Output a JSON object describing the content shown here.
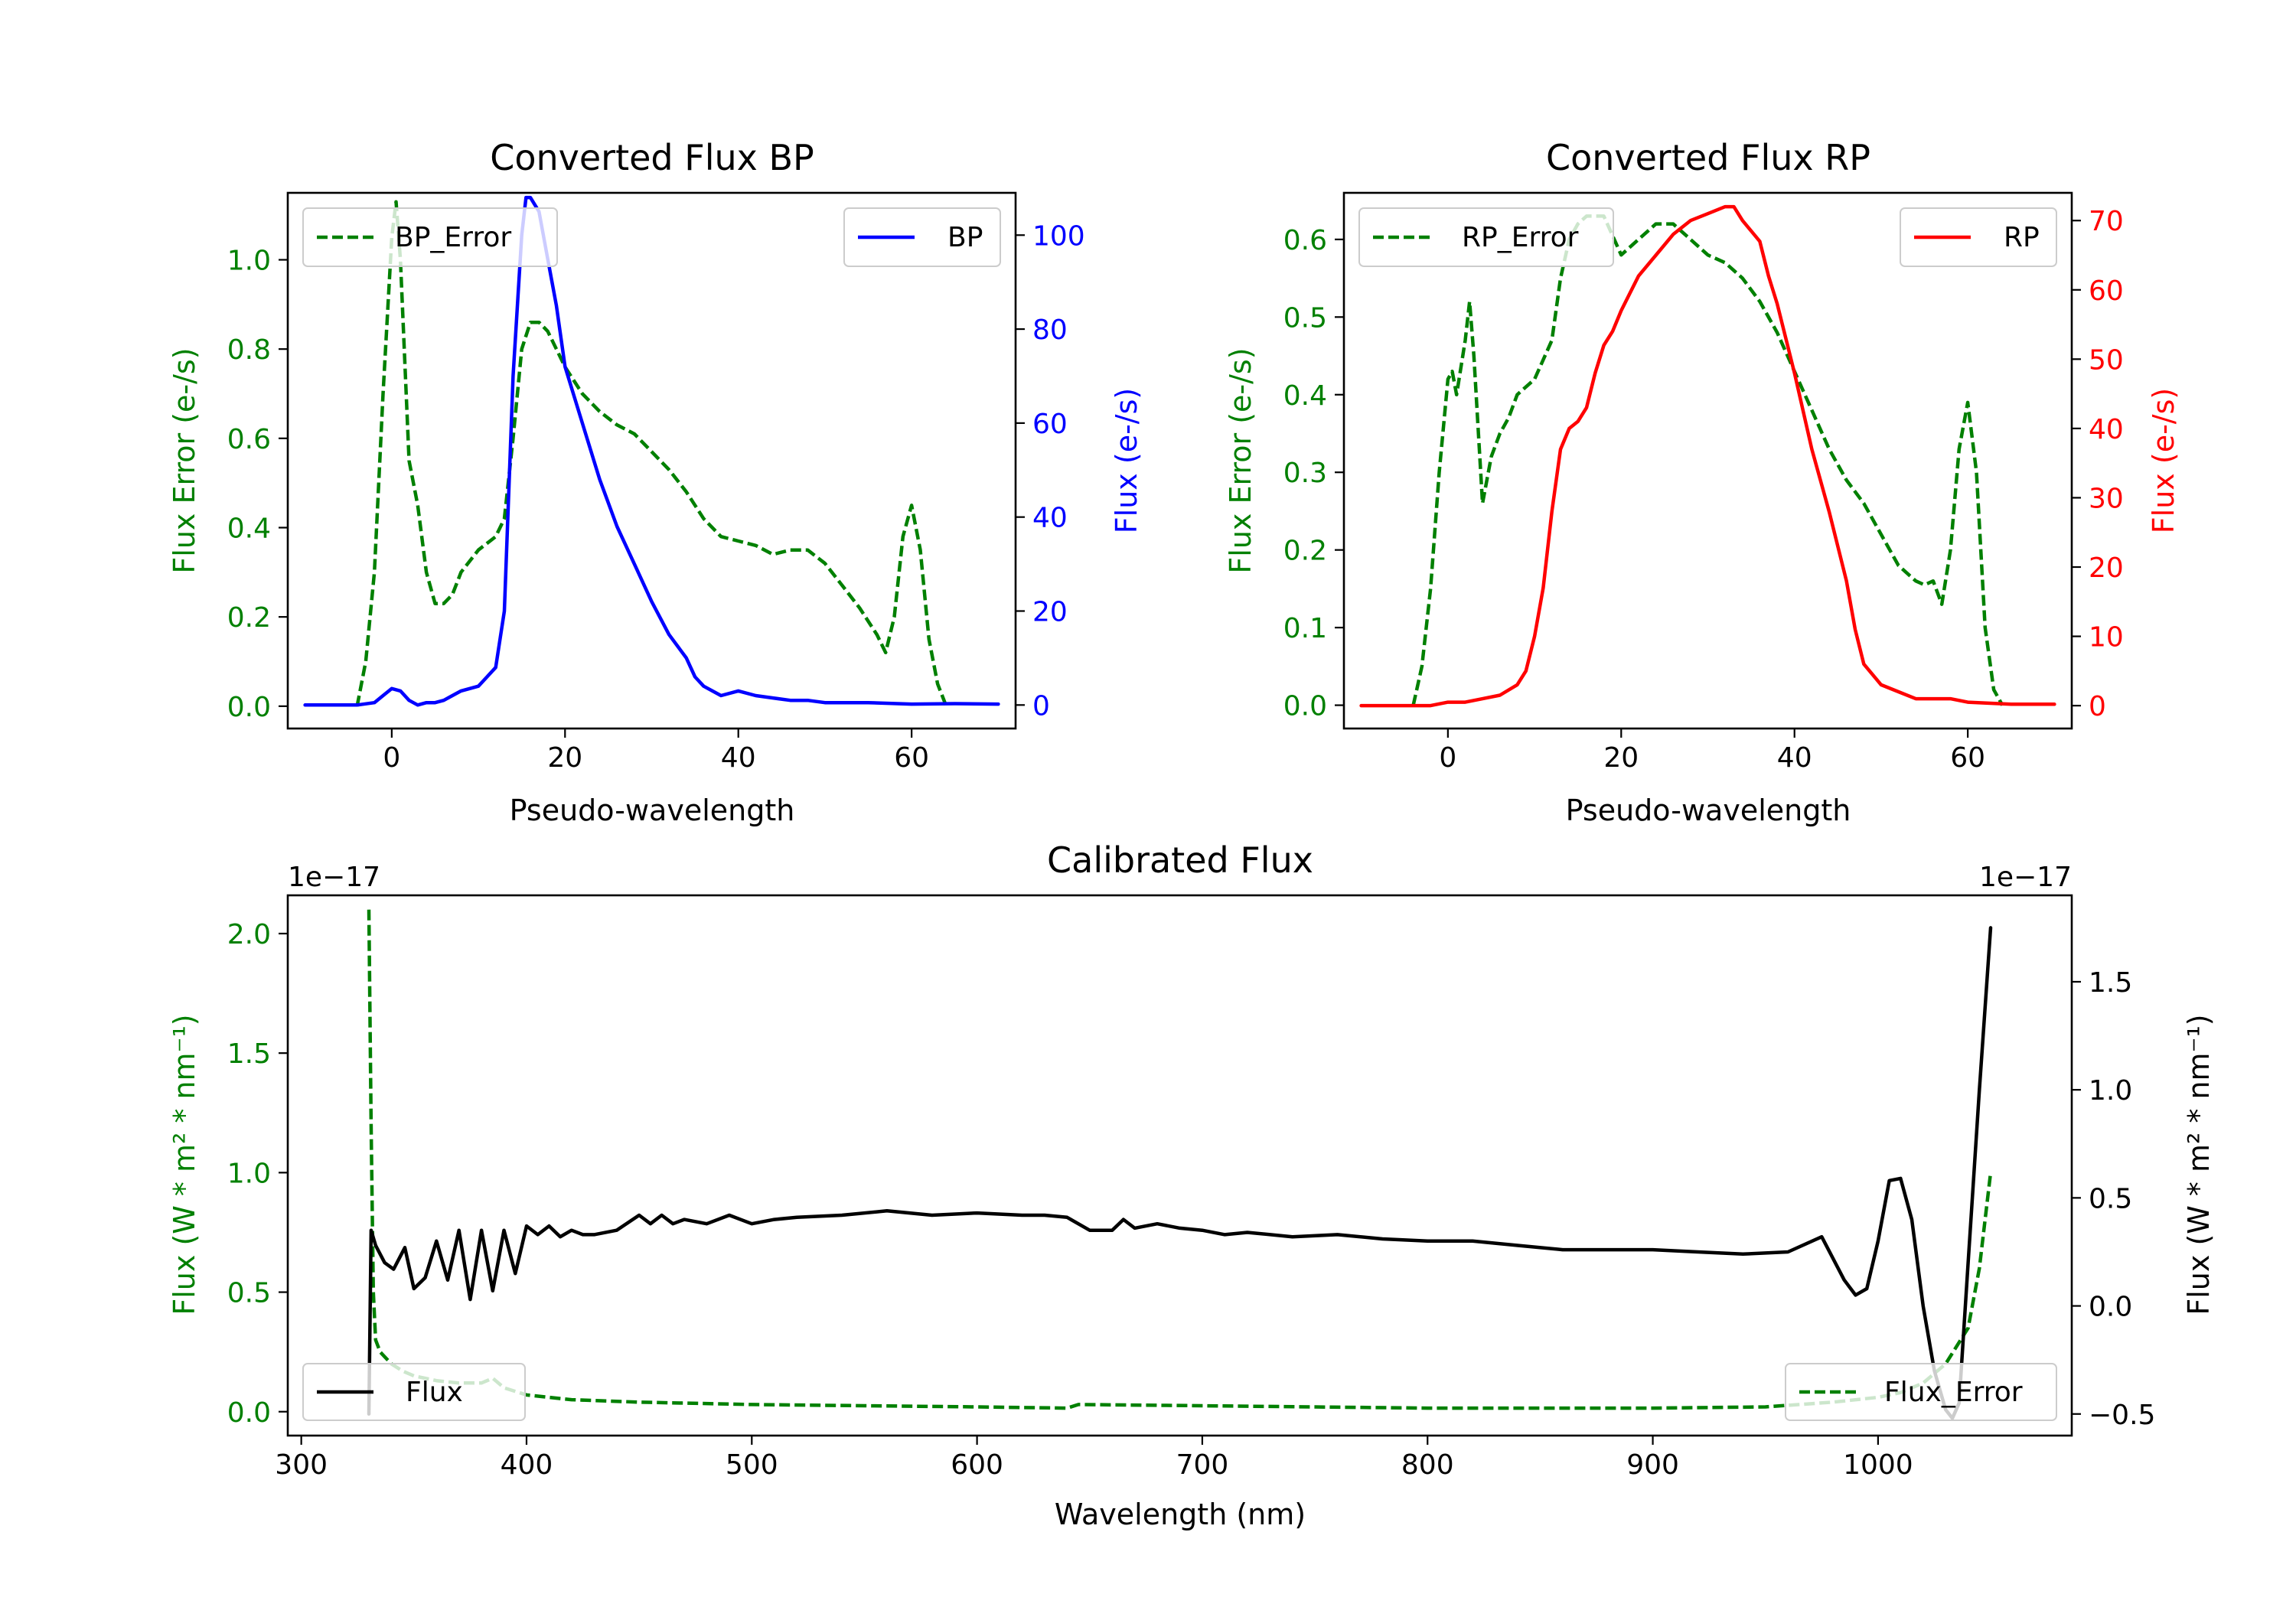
{
  "colors": {
    "error": "#008000",
    "bp": "#0000ff",
    "rp": "#ff0000",
    "flux": "#000000",
    "axis": "#000000"
  },
  "chart_data": [
    {
      "id": "bp",
      "type": "line",
      "title": "Converted Flux BP",
      "xlabel": "Pseudo-wavelength",
      "ylabel_left": "Flux Error (e-/s)",
      "ylabel_right": "Flux (e-/s)",
      "xlim": [
        -12,
        72
      ],
      "ylim_left": [
        -0.05,
        1.15
      ],
      "ylim_right": [
        -5,
        109
      ],
      "xticks": [
        0,
        20,
        40,
        60
      ],
      "yticks_left": [
        0.0,
        0.2,
        0.4,
        0.6,
        0.8,
        1.0
      ],
      "yticks_right": [
        0,
        20,
        40,
        60,
        80,
        100
      ],
      "series": [
        {
          "name": "BP_Error",
          "axis": "left",
          "style": "dashed",
          "color": "#008000",
          "legend": "top-left",
          "x": [
            -4,
            -3,
            -2,
            -1,
            0,
            0.5,
            1,
            2,
            3,
            4,
            5,
            6,
            7,
            8,
            10,
            12,
            13,
            14,
            15,
            16,
            17,
            18,
            19,
            20,
            22,
            24,
            26,
            28,
            30,
            32,
            34,
            36,
            38,
            40,
            42,
            44,
            46,
            48,
            50,
            52,
            54,
            56,
            57,
            58,
            59,
            60,
            61,
            62,
            63,
            64
          ],
          "y": [
            0.0,
            0.1,
            0.3,
            0.7,
            1.05,
            1.13,
            1.0,
            0.55,
            0.45,
            0.3,
            0.23,
            0.23,
            0.25,
            0.3,
            0.35,
            0.38,
            0.42,
            0.6,
            0.8,
            0.86,
            0.86,
            0.84,
            0.8,
            0.76,
            0.7,
            0.66,
            0.63,
            0.61,
            0.57,
            0.53,
            0.48,
            0.42,
            0.38,
            0.37,
            0.36,
            0.34,
            0.35,
            0.35,
            0.32,
            0.27,
            0.22,
            0.16,
            0.12,
            0.2,
            0.38,
            0.45,
            0.35,
            0.15,
            0.05,
            0.0
          ]
        },
        {
          "name": "BP",
          "axis": "right",
          "style": "solid",
          "color": "#0000ff",
          "legend": "top-right",
          "x": [
            -10,
            -8,
            -6,
            -4,
            -2,
            -1,
            0,
            1,
            2,
            3,
            4,
            5,
            6,
            7,
            8,
            10,
            12,
            13,
            14,
            15,
            15.5,
            16,
            17,
            18,
            19,
            20,
            22,
            24,
            26,
            28,
            30,
            32,
            34,
            35,
            36,
            37,
            38,
            40,
            42,
            44,
            46,
            48,
            50,
            55,
            60,
            65,
            70
          ],
          "y": [
            0,
            0,
            0,
            0,
            0.5,
            2,
            3.5,
            3,
            1,
            0,
            0.5,
            0.5,
            1,
            2,
            3,
            4,
            8,
            20,
            70,
            100,
            108,
            108,
            105,
            95,
            85,
            72,
            60,
            48,
            38,
            30,
            22,
            15,
            10,
            6,
            4,
            3,
            2,
            3,
            2,
            1.5,
            1,
            1,
            0.5,
            0.5,
            0.2,
            0.3,
            0.2
          ]
        }
      ]
    },
    {
      "id": "rp",
      "type": "line",
      "title": "Converted Flux RP",
      "xlabel": "Pseudo-wavelength",
      "ylabel_left": "Flux Error (e-/s)",
      "ylabel_right": "Flux (e-/s)",
      "xlim": [
        -12,
        72
      ],
      "ylim_left": [
        -0.03,
        0.66
      ],
      "ylim_right": [
        -3.3,
        74
      ],
      "xticks": [
        0,
        20,
        40,
        60
      ],
      "yticks_left": [
        0.0,
        0.1,
        0.2,
        0.3,
        0.4,
        0.5,
        0.6
      ],
      "yticks_right": [
        0,
        10,
        20,
        30,
        40,
        50,
        60,
        70
      ],
      "series": [
        {
          "name": "RP_Error",
          "axis": "left",
          "style": "dashed",
          "color": "#008000",
          "legend": "top-left",
          "x": [
            -4,
            -3,
            -2,
            -1,
            0,
            0.5,
            1,
            2,
            2.5,
            3,
            4,
            5,
            6,
            7,
            8,
            10,
            12,
            13,
            14,
            15,
            16,
            18,
            20,
            22,
            24,
            26,
            28,
            30,
            32,
            34,
            36,
            38,
            40,
            42,
            44,
            46,
            48,
            50,
            52,
            54,
            55,
            56,
            57,
            58,
            59,
            60,
            61,
            62,
            63,
            64
          ],
          "y": [
            0.0,
            0.05,
            0.15,
            0.3,
            0.42,
            0.43,
            0.4,
            0.47,
            0.52,
            0.45,
            0.26,
            0.32,
            0.35,
            0.37,
            0.4,
            0.42,
            0.47,
            0.55,
            0.6,
            0.62,
            0.63,
            0.63,
            0.58,
            0.6,
            0.62,
            0.62,
            0.6,
            0.58,
            0.57,
            0.55,
            0.52,
            0.48,
            0.43,
            0.38,
            0.33,
            0.29,
            0.26,
            0.22,
            0.18,
            0.16,
            0.155,
            0.16,
            0.13,
            0.2,
            0.33,
            0.39,
            0.3,
            0.1,
            0.02,
            0.0
          ]
        },
        {
          "name": "RP",
          "axis": "right",
          "style": "solid",
          "color": "#ff0000",
          "legend": "top-right",
          "x": [
            -10,
            -6,
            -4,
            -2,
            0,
            2,
            4,
            6,
            8,
            9,
            10,
            11,
            12,
            13,
            14,
            15,
            16,
            17,
            18,
            19,
            20,
            22,
            24,
            26,
            28,
            30,
            32,
            33,
            34,
            36,
            37,
            38,
            40,
            42,
            44,
            46,
            47,
            48,
            50,
            52,
            54,
            56,
            58,
            60,
            65,
            70
          ],
          "y": [
            0,
            0,
            0,
            0,
            0.5,
            0.5,
            1,
            1.5,
            3,
            5,
            10,
            17,
            28,
            37,
            40,
            41,
            43,
            48,
            52,
            54,
            57,
            62,
            65,
            68,
            70,
            71,
            72,
            72,
            70,
            67,
            62,
            58,
            48,
            37,
            28,
            18,
            11,
            6,
            3,
            2,
            1,
            1,
            1,
            0.5,
            0.2,
            0.2
          ]
        }
      ]
    },
    {
      "id": "calibrated",
      "type": "line",
      "title": "Calibrated Flux",
      "xlabel": "Wavelength (nm)",
      "ylabel_left": "Flux (W * m² * nm⁻¹)",
      "ylabel_right": "Flux (W * m² * nm⁻¹)",
      "offset_left": "1e−17",
      "offset_right": "1e−17",
      "xlim": [
        294,
        1086
      ],
      "ylim_left": [
        -0.1,
        2.16
      ],
      "ylim_right": [
        -0.6,
        1.9
      ],
      "xticks": [
        300,
        400,
        500,
        600,
        700,
        800,
        900,
        1000
      ],
      "yticks_left": [
        0.0,
        0.5,
        1.0,
        1.5,
        2.0
      ],
      "yticks_right": [
        -0.5,
        0.0,
        0.5,
        1.0,
        1.5
      ],
      "series": [
        {
          "name": "Flux_Error",
          "axis": "left",
          "style": "dashed",
          "color": "#008000",
          "legend": "bottom-right",
          "x": [
            330,
            331,
            332,
            333,
            335,
            340,
            345,
            350,
            360,
            370,
            380,
            385,
            390,
            400,
            420,
            450,
            500,
            550,
            600,
            640,
            645,
            700,
            800,
            900,
            950,
            980,
            1000,
            1010,
            1020,
            1030,
            1040,
            1045,
            1050
          ],
          "y": [
            2.1,
            1.2,
            0.5,
            0.3,
            0.25,
            0.2,
            0.17,
            0.15,
            0.13,
            0.12,
            0.12,
            0.14,
            0.1,
            0.07,
            0.05,
            0.04,
            0.03,
            0.025,
            0.02,
            0.015,
            0.03,
            0.025,
            0.015,
            0.015,
            0.02,
            0.04,
            0.06,
            0.08,
            0.12,
            0.2,
            0.35,
            0.6,
            1.0
          ]
        },
        {
          "name": "Flux",
          "axis": "right",
          "style": "solid",
          "color": "#000000",
          "legend": "bottom-left",
          "x": [
            330,
            331,
            333,
            337,
            341,
            346,
            350,
            355,
            360,
            365,
            370,
            375,
            380,
            385,
            390,
            395,
            400,
            405,
            410,
            415,
            420,
            425,
            430,
            440,
            450,
            455,
            460,
            465,
            470,
            480,
            490,
            500,
            510,
            520,
            540,
            560,
            580,
            600,
            620,
            630,
            640,
            650,
            660,
            665,
            670,
            680,
            690,
            700,
            710,
            720,
            740,
            760,
            780,
            800,
            820,
            840,
            860,
            880,
            900,
            920,
            940,
            960,
            975,
            985,
            990,
            995,
            1000,
            1005,
            1010,
            1015,
            1020,
            1025,
            1030,
            1033,
            1036,
            1040,
            1045,
            1050
          ],
          "y": [
            -0.5,
            0.35,
            0.28,
            0.2,
            0.17,
            0.27,
            0.08,
            0.13,
            0.3,
            0.12,
            0.35,
            0.03,
            0.35,
            0.07,
            0.35,
            0.15,
            0.37,
            0.33,
            0.37,
            0.32,
            0.35,
            0.33,
            0.33,
            0.35,
            0.42,
            0.38,
            0.42,
            0.38,
            0.4,
            0.38,
            0.42,
            0.38,
            0.4,
            0.41,
            0.42,
            0.44,
            0.42,
            0.43,
            0.42,
            0.42,
            0.41,
            0.35,
            0.35,
            0.4,
            0.36,
            0.38,
            0.36,
            0.35,
            0.33,
            0.34,
            0.32,
            0.33,
            0.31,
            0.3,
            0.3,
            0.28,
            0.26,
            0.26,
            0.26,
            0.25,
            0.24,
            0.25,
            0.32,
            0.12,
            0.05,
            0.08,
            0.3,
            0.58,
            0.59,
            0.4,
            0.0,
            -0.3,
            -0.48,
            -0.52,
            -0.45,
            0.2,
            1.0,
            1.75
          ]
        }
      ]
    }
  ]
}
